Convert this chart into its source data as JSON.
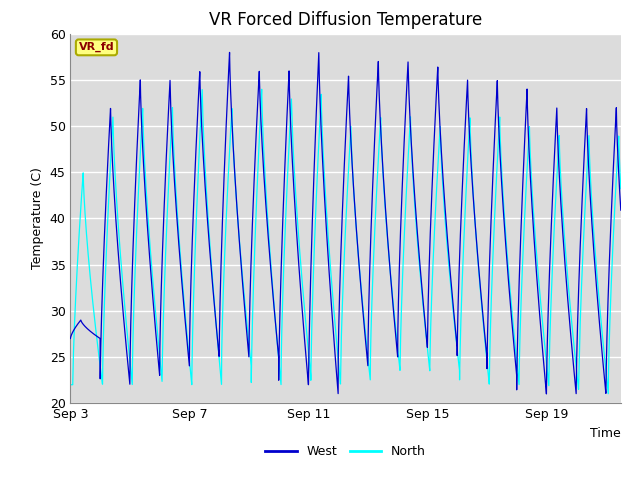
{
  "title": "VR Forced Diffusion Temperature",
  "xlabel": "Time",
  "ylabel": "Temperature (C)",
  "ylim": [
    20,
    60
  ],
  "xlim_days": [
    0,
    18.5
  ],
  "xtick_labels": [
    "Sep 3",
    "Sep 7",
    "Sep 11",
    "Sep 15",
    "Sep 19"
  ],
  "xtick_positions": [
    0,
    4,
    8,
    12,
    16
  ],
  "west_color": "#0000CD",
  "north_color": "#00FFFF",
  "background_color": "#DCDCDC",
  "fig_background": "#FFFFFF",
  "annotation_text": "VR_fd",
  "annotation_bg": "#FFFF80",
  "annotation_fg": "#8B0000",
  "annotation_edge": "#AAAA00",
  "legend_west": "West",
  "legend_north": "North",
  "title_fontsize": 12,
  "axis_fontsize": 9,
  "tick_fontsize": 9,
  "west_peaks": [
    29,
    52,
    55,
    55,
    56,
    58,
    56,
    56,
    58,
    55.5,
    57,
    57,
    56.5,
    55,
    55,
    54,
    52,
    52,
    52
  ],
  "west_troughs": [
    27,
    22,
    23,
    24,
    25,
    25,
    25,
    22,
    21,
    24,
    25,
    26,
    26,
    25,
    23,
    21,
    21,
    21,
    21
  ],
  "north_peaks": [
    45,
    51,
    52,
    52,
    54,
    52,
    54,
    53,
    53.5,
    50,
    51,
    51,
    50,
    51,
    51,
    50,
    49,
    49,
    49
  ],
  "north_troughs": [
    22,
    22,
    22.5,
    22,
    22,
    24,
    22,
    23,
    22,
    22.5,
    23.5,
    23.5,
    23.5,
    22,
    22,
    22,
    21.5,
    21,
    21.5
  ],
  "north_phase_shift": 0.08
}
